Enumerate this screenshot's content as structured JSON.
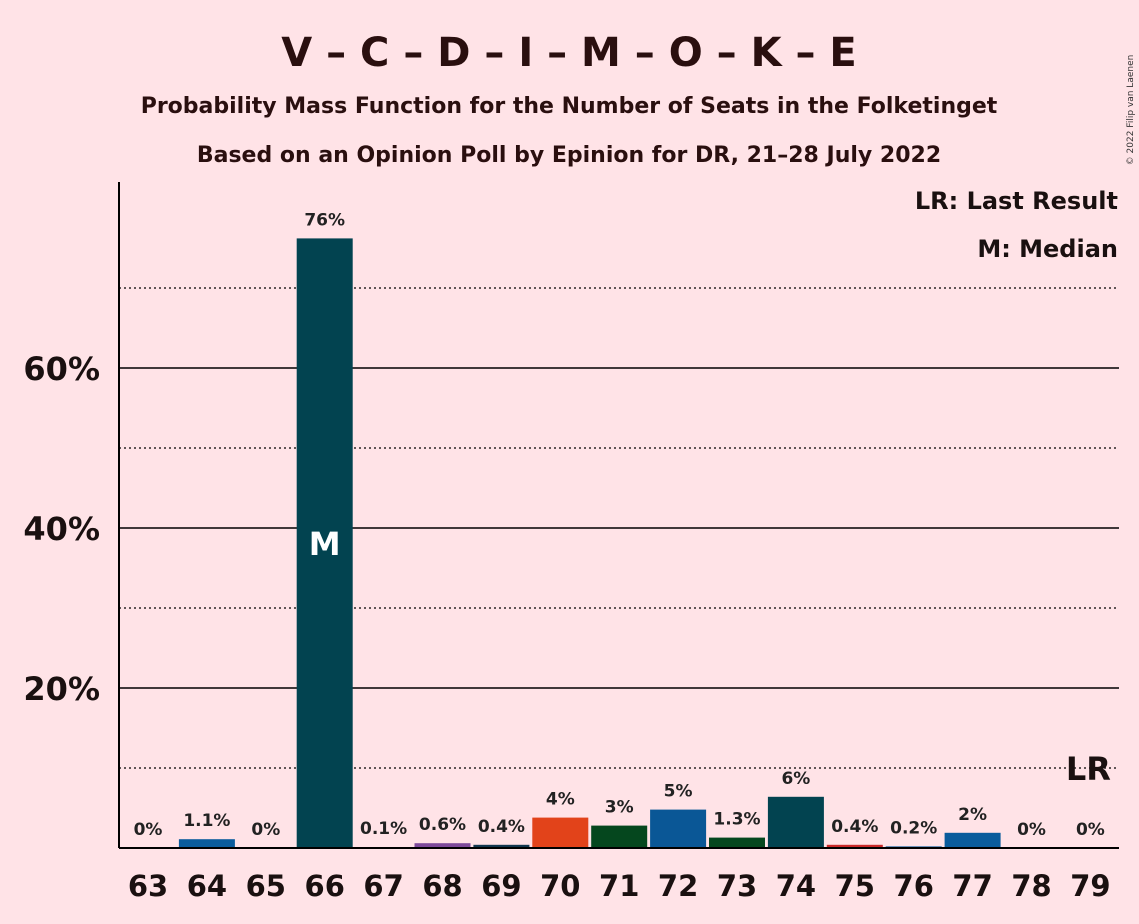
{
  "title": "V – C – D – I – M – O – K – E",
  "subtitle1": "Probability Mass Function for the Number of Seats in the Folketinget",
  "subtitle2": "Based on an Opinion Poll by Epinion for DR, 21–28 July 2022",
  "legend": {
    "lr": "LR: Last Result",
    "m": "M: Median"
  },
  "copyright": "© 2022 Filip van Laenen",
  "markers": {
    "median_label": "M",
    "median_seat": 66,
    "lr_label": "LR",
    "lr_seat": 79
  },
  "chart_data": {
    "type": "bar",
    "title": "V – C – D – I – M – O – K – E",
    "categories": [
      "63",
      "64",
      "65",
      "66",
      "67",
      "68",
      "69",
      "70",
      "71",
      "72",
      "73",
      "74",
      "75",
      "76",
      "77",
      "78",
      "79"
    ],
    "values": [
      0,
      1.1,
      0,
      76,
      0.1,
      0.6,
      0.4,
      4,
      3,
      5,
      1.3,
      6,
      0.4,
      0.2,
      2,
      0,
      0
    ],
    "bar_heights": [
      0,
      1.1,
      0,
      76.2,
      0.1,
      0.6,
      0.4,
      3.8,
      2.8,
      4.8,
      1.3,
      6.4,
      0.4,
      0.2,
      1.9,
      0,
      0
    ],
    "data_labels": [
      "0%",
      "1.1%",
      "0%",
      "76%",
      "0.1%",
      "0.6%",
      "0.4%",
      "4%",
      "3%",
      "5%",
      "1.3%",
      "6%",
      "0.4%",
      "0.2%",
      "2%",
      "0%",
      "0%"
    ],
    "colors": [
      "#0A5C9C",
      "#0A5C9C",
      "#0A5C9C",
      "#024350",
      "#024350",
      "#7D4A9A",
      "#12374F",
      "#E2431A",
      "#05471E",
      "#0A5796",
      "#05471E",
      "#024350",
      "#C92A2A",
      "#0A5C9C",
      "#0A5C9C",
      "#0A5C9C",
      "#0A5C9C"
    ],
    "ylim": [
      0,
      83
    ],
    "yticks": [
      20,
      40,
      60
    ],
    "ytick_labels": [
      "20%",
      "40%",
      "60%"
    ],
    "minor_gridlines": [
      10,
      30,
      50,
      70
    ],
    "grid": true,
    "legend_position": "top-right",
    "xlabel": "",
    "ylabel": ""
  }
}
